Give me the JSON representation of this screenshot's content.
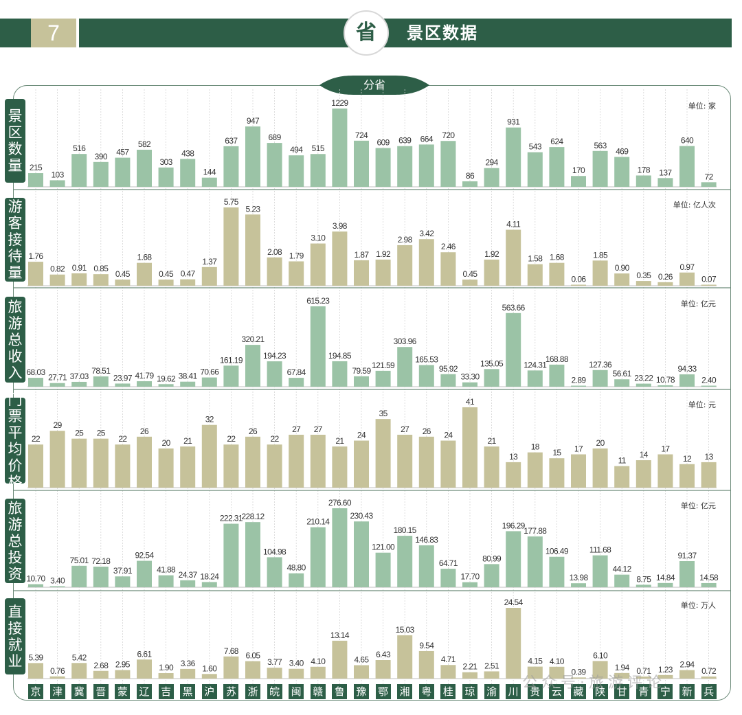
{
  "header": {
    "number": "7",
    "circle_char": "省",
    "title": "景区数据"
  },
  "tab_label": "分省",
  "watermark": "公众号·旅游评论",
  "colors": {
    "green": "#9bc3a6",
    "khaki": "#c6c29a",
    "dark": "#2d5e47"
  },
  "chart_data": {
    "type": "bar",
    "categories": [
      "京",
      "津",
      "冀",
      "晋",
      "蒙",
      "辽",
      "吉",
      "黑",
      "沪",
      "苏",
      "浙",
      "皖",
      "闽",
      "赣",
      "鲁",
      "豫",
      "鄂",
      "湘",
      "粤",
      "桂",
      "琼",
      "渝",
      "川",
      "贵",
      "云",
      "藏",
      "陕",
      "甘",
      "青",
      "宁",
      "新",
      "兵"
    ],
    "series": [
      {
        "name": "景区数量",
        "unit": "单位: 家",
        "color": "#9bc3a6",
        "values": [
          215,
          103,
          516,
          390,
          457,
          582,
          303,
          438,
          144,
          637,
          947,
          689,
          494,
          515,
          1229,
          724,
          609,
          639,
          664,
          720,
          86,
          294,
          931,
          543,
          624,
          170,
          563,
          469,
          178,
          137,
          640,
          72
        ],
        "labels": [
          "215",
          "103",
          "516",
          "390",
          "457",
          "582",
          "303",
          "438",
          "144",
          "637",
          "947",
          "689",
          "494",
          "515",
          "1229",
          "724",
          "609",
          "639",
          "664",
          "720",
          "86",
          "294",
          "931",
          "543",
          "624",
          "170",
          "563",
          "469",
          "178",
          "137",
          "640",
          "72"
        ]
      },
      {
        "name": "游客接待量",
        "unit": "单位: 亿人次",
        "color": "#c6c29a",
        "values": [
          1.76,
          0.82,
          0.91,
          0.85,
          0.45,
          1.68,
          0.45,
          0.47,
          1.37,
          5.75,
          5.23,
          2.08,
          1.79,
          3.1,
          3.98,
          1.87,
          1.92,
          2.98,
          3.42,
          2.46,
          0.45,
          1.92,
          4.11,
          1.58,
          1.68,
          0.06,
          1.85,
          0.9,
          0.35,
          0.26,
          0.97,
          0.07
        ],
        "labels": [
          "1.76",
          "0.82",
          "0.91",
          "0.85",
          "0.45",
          "1.68",
          "0.45",
          "0.47",
          "1.37",
          "5.75",
          "5.23",
          "2.08",
          "1.79",
          "3.10",
          "3.98",
          "1.87",
          "1.92",
          "2.98",
          "3.42",
          "2.46",
          "0.45",
          "1.92",
          "4.11",
          "1.58",
          "1.68",
          "0.06",
          "1.85",
          "0.90",
          "0.35",
          "0.26",
          "0.97",
          "0.07"
        ]
      },
      {
        "name": "旅游总收入",
        "unit": "单位: 亿元",
        "color": "#9bc3a6",
        "values": [
          68.03,
          27.71,
          37.03,
          78.51,
          23.97,
          41.79,
          19.62,
          38.41,
          70.66,
          161.19,
          320.21,
          194.23,
          67.84,
          615.23,
          194.85,
          79.59,
          121.59,
          303.96,
          165.53,
          95.92,
          33.3,
          135.05,
          563.66,
          124.31,
          168.88,
          2.89,
          127.36,
          56.61,
          23.22,
          10.78,
          94.33,
          2.4
        ],
        "labels": [
          "68.03",
          "27.71",
          "37.03",
          "78.51",
          "23.97",
          "41.79",
          "19.62",
          "38.41",
          "70.66",
          "161.19",
          "320.21",
          "194.23",
          "67.84",
          "615.23",
          "194.85",
          "79.59",
          "121.59",
          "303.96",
          "165.53",
          "95.92",
          "33.30",
          "135.05",
          "563.66",
          "124.31",
          "168.88",
          "2.89",
          "127.36",
          "56.61",
          "23.22",
          "10.78",
          "94.33",
          "2.40"
        ]
      },
      {
        "name": "门票平均价格",
        "unit": "单位: 元",
        "color": "#c6c29a",
        "values": [
          22,
          29,
          25,
          25,
          22,
          26,
          20,
          21,
          32,
          22,
          26,
          22,
          27,
          27,
          21,
          24,
          35,
          27,
          26,
          24,
          41,
          21,
          13,
          18,
          15,
          17,
          20,
          11,
          14,
          17,
          12,
          13
        ],
        "labels": [
          "22",
          "29",
          "25",
          "25",
          "22",
          "26",
          "20",
          "21",
          "32",
          "22",
          "26",
          "22",
          "27",
          "27",
          "21",
          "24",
          "35",
          "27",
          "26",
          "24",
          "41",
          "21",
          "13",
          "18",
          "15",
          "17",
          "20",
          "11",
          "14",
          "17",
          "12",
          "13"
        ]
      },
      {
        "name": "旅游总投资",
        "unit": "单位: 亿元",
        "color": "#9bc3a6",
        "values": [
          10.7,
          3.4,
          75.01,
          72.18,
          37.91,
          92.54,
          41.88,
          24.37,
          18.24,
          222.31,
          228.12,
          104.98,
          48.8,
          210.14,
          276.6,
          230.43,
          121.0,
          180.15,
          146.83,
          64.71,
          17.7,
          80.99,
          196.29,
          177.88,
          106.49,
          13.98,
          111.68,
          44.12,
          8.75,
          14.84,
          91.37,
          14.58
        ],
        "labels": [
          "10.70",
          "3.40",
          "75.01",
          "72.18",
          "37.91",
          "92.54",
          "41.88",
          "24.37",
          "18.24",
          "222.31",
          "228.12",
          "104.98",
          "48.80",
          "210.14",
          "276.60",
          "230.43",
          "121.00",
          "180.15",
          "146.83",
          "64.71",
          "17.70",
          "80.99",
          "196.29",
          "177.88",
          "106.49",
          "13.98",
          "111.68",
          "44.12",
          "8.75",
          "14.84",
          "91.37",
          "14.58"
        ]
      },
      {
        "name": "直接就业",
        "unit": "单位: 万人",
        "color": "#c6c29a",
        "values": [
          5.39,
          0.76,
          5.42,
          2.68,
          2.95,
          6.61,
          1.9,
          3.36,
          1.6,
          7.68,
          6.05,
          3.77,
          3.4,
          4.1,
          13.14,
          4.65,
          6.43,
          15.03,
          9.54,
          4.71,
          2.21,
          2.51,
          24.54,
          4.15,
          4.1,
          0.39,
          6.1,
          1.94,
          0.71,
          1.23,
          2.94,
          0.72
        ],
        "labels": [
          "5.39",
          "0.76",
          "5.42",
          "2.68",
          "2.95",
          "6.61",
          "1.90",
          "3.36",
          "1.60",
          "7.68",
          "6.05",
          "3.77",
          "3.40",
          "4.10",
          "13.14",
          "4.65",
          "6.43",
          "15.03",
          "9.54",
          "4.71",
          "2.21",
          "2.51",
          "24.54",
          "4.15",
          "4.10",
          "0.39",
          "6.10",
          "1.94",
          "0.71",
          "1.23",
          "2.94",
          "0.72"
        ]
      }
    ]
  }
}
